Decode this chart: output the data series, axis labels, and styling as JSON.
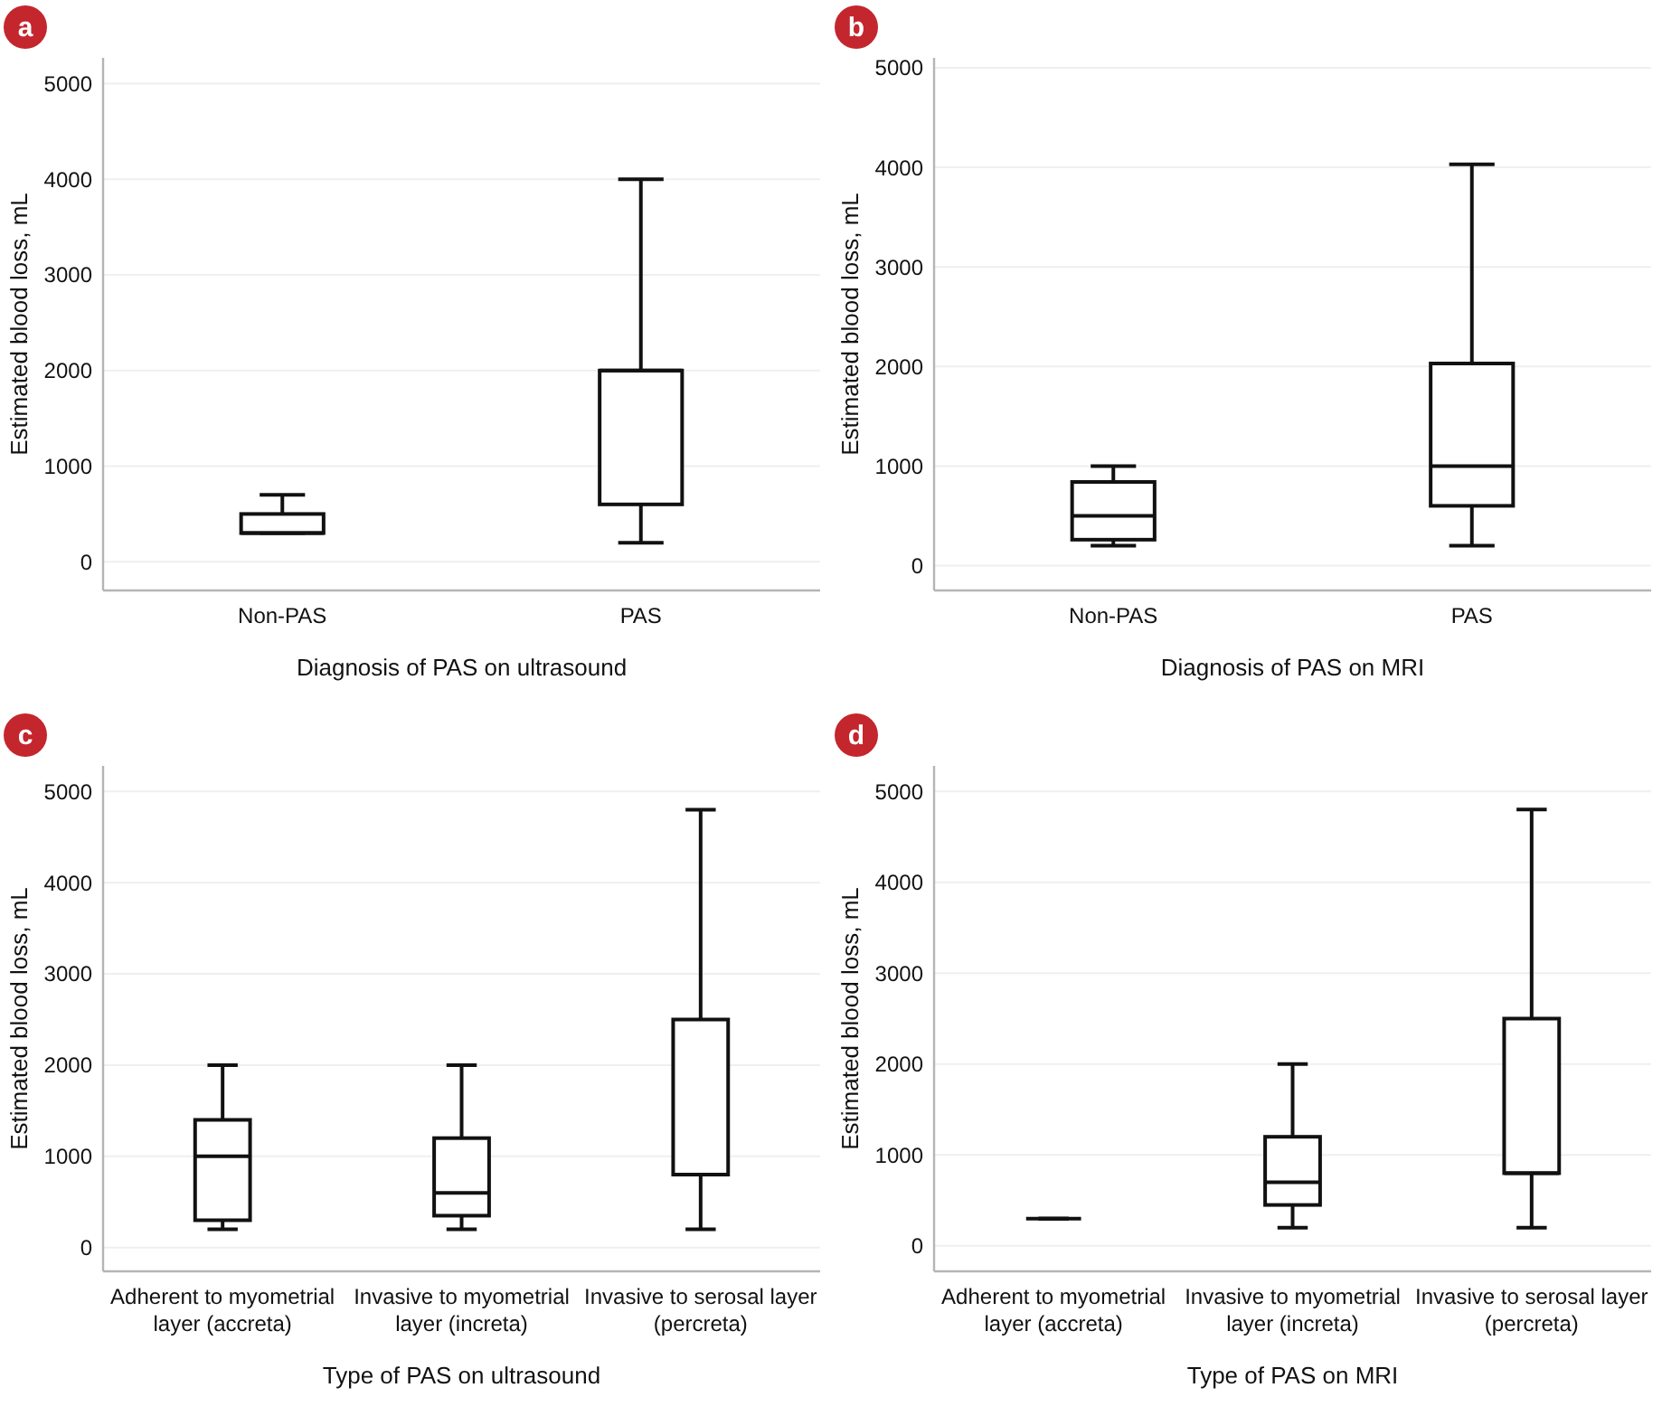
{
  "chart_data": [
    {
      "type": "box",
      "title": "a",
      "categories": [
        "Non-PAS",
        "PAS"
      ],
      "boxes": [
        {
          "low": 300,
          "q1": 300,
          "median": 300,
          "q3": 500,
          "high": 700
        },
        {
          "low": 200,
          "q1": 600,
          "median": 2000,
          "q3": 2000,
          "high": 4000
        }
      ],
      "color": "#111111",
      "xlabel": "Diagnosis of PAS on ultrasound",
      "ylabel": "Estimated blood loss, mL",
      "ylim": [
        -300,
        5270
      ],
      "yticks": [
        0,
        1000,
        2000,
        3000,
        4000,
        5000
      ],
      "grid": "y"
    },
    {
      "type": "box",
      "title": "b",
      "categories": [
        "Non-PAS",
        "PAS"
      ],
      "boxes": [
        {
          "low": 200,
          "q1": 260,
          "median": 500,
          "q3": 840,
          "high": 1000
        },
        {
          "low": 200,
          "q1": 600,
          "median": 1000,
          "q3": 2030,
          "high": 4030
        }
      ],
      "color": "#111111",
      "xlabel": "Diagnosis of PAS on MRI",
      "ylabel": "Estimated blood loss, mL",
      "ylim": [
        -250,
        5100
      ],
      "yticks": [
        0,
        1000,
        2000,
        3000,
        4000,
        5000
      ],
      "grid": "y"
    },
    {
      "type": "box",
      "title": "c",
      "categories": [
        "Adherent to myometrial layer (accreta)",
        "Invasive to myometrial layer (increta)",
        "Invasive to serosal layer (percreta)"
      ],
      "boxes": [
        {
          "low": 200,
          "q1": 300,
          "median": 1000,
          "q3": 1400,
          "high": 2000
        },
        {
          "low": 200,
          "q1": 350,
          "median": 600,
          "q3": 1200,
          "high": 2000
        },
        {
          "low": 200,
          "q1": 800,
          "median": 800,
          "q3": 2500,
          "high": 4800
        }
      ],
      "color": "#111111",
      "xlabel": "Type of PAS on ultrasound",
      "ylabel": "Estimated blood loss, mL",
      "ylim": [
        -260,
        5280
      ],
      "yticks": [
        0,
        1000,
        2000,
        3000,
        4000,
        5000
      ],
      "grid": "y"
    },
    {
      "type": "box",
      "title": "d",
      "categories": [
        "Adherent to myometrial layer (accreta)",
        "Invasive to myometrial layer (increta)",
        "Invasive to serosal layer (percreta)"
      ],
      "boxes": [
        {
          "low": 300,
          "q1": 300,
          "median": 300,
          "q3": 300,
          "high": 300
        },
        {
          "low": 200,
          "q1": 450,
          "median": 700,
          "q3": 1200,
          "high": 2000
        },
        {
          "low": 200,
          "q1": 800,
          "median": 800,
          "q3": 2500,
          "high": 4800
        }
      ],
      "color": "#111111",
      "xlabel": "Type of PAS on MRI",
      "ylabel": "Estimated blood loss, mL",
      "ylim": [
        -280,
        5280
      ],
      "yticks": [
        0,
        1000,
        2000,
        3000,
        4000,
        5000
      ],
      "grid": "y"
    }
  ]
}
